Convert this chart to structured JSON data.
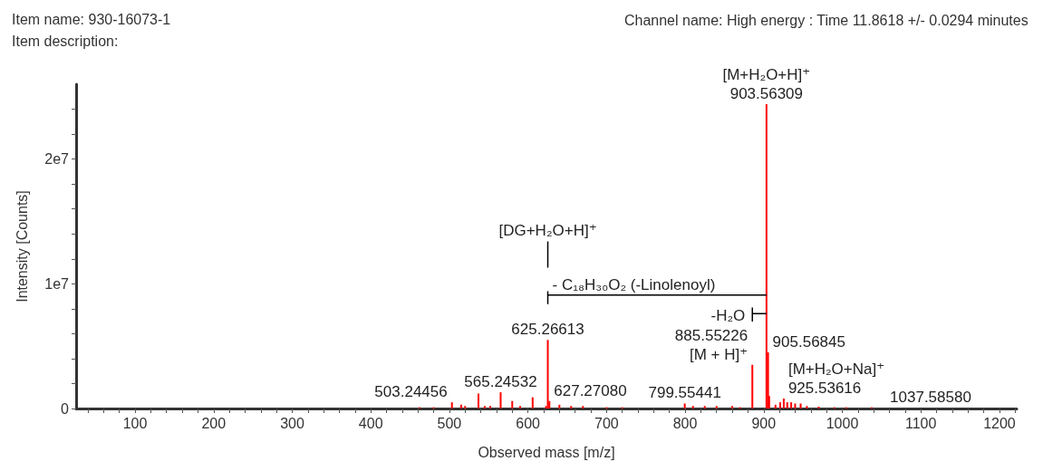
{
  "chart_data": {
    "type": "bar",
    "title": "Item name: 930-16073-1",
    "subtitle": "Item description:",
    "xlabel": "Observed mass [m/z]",
    "ylabel": "Intensity [Counts]",
    "x": [
      462,
      480,
      503.24456,
      515,
      520,
      537,
      545,
      552,
      565.24532,
      580,
      590,
      606,
      623,
      625.26613,
      627.2708,
      640,
      655,
      670,
      700,
      720,
      799.55441,
      810,
      825,
      840,
      860,
      870,
      885.55226,
      903.56309,
      905.56845,
      907,
      915,
      921,
      925.53616,
      930,
      935,
      940,
      947,
      955,
      970,
      990,
      1005,
      1037.5858
    ],
    "values": [
      100000,
      100000,
      500000,
      300000,
      200000,
      1200000,
      200000,
      200000,
      1300000,
      600000,
      200000,
      900000,
      200000,
      5500000,
      600000,
      300000,
      200000,
      200000,
      100000,
      100000,
      400000,
      200000,
      200000,
      200000,
      200000,
      100000,
      3500000,
      24400000,
      4500000,
      1000000,
      300000,
      500000,
      800000,
      500000,
      500000,
      400000,
      400000,
      200000,
      150000,
      100000,
      100000,
      100000
    ],
    "color": "#ff0000",
    "series": [
      {
        "type": "line",
        "color": "#000000",
        "x": [
          625.26613,
          625.26613
        ],
        "values": [
          13400000,
          11300000
        ]
      },
      {
        "type": "line",
        "color": "#000000",
        "x": [
          625.26613,
          625.26613,
          625.26613,
          903.56309
        ],
        "values": [
          9400000,
          8400000,
          9100000,
          9100000
        ]
      },
      {
        "type": "line",
        "color": "#000000",
        "x": [
          885.55226,
          885.55226,
          885.55226,
          903.56309
        ],
        "values": [
          8100000,
          7000000,
          7600000,
          7600000
        ]
      }
    ],
    "xlim": [
      25,
      1222
    ],
    "xticks": [
      {
        "value": 40,
        "label": null
      },
      {
        "value": 60,
        "label": null
      },
      {
        "value": 80,
        "label": null
      },
      100,
      {
        "value": 120,
        "label": null
      },
      {
        "value": 140,
        "label": null
      },
      {
        "value": 160,
        "label": null
      },
      {
        "value": 180,
        "label": null
      },
      200,
      {
        "value": 220,
        "label": null
      },
      {
        "value": 240,
        "label": null
      },
      {
        "value": 260,
        "label": null
      },
      {
        "value": 280,
        "label": null
      },
      300,
      {
        "value": 320,
        "label": null
      },
      {
        "value": 340,
        "label": null
      },
      {
        "value": 360,
        "label": null
      },
      {
        "value": 380,
        "label": null
      },
      400,
      {
        "value": 420,
        "label": null
      },
      {
        "value": 440,
        "label": null
      },
      {
        "value": 460,
        "label": null
      },
      {
        "value": 480,
        "label": null
      },
      500,
      {
        "value": 520,
        "label": null
      },
      {
        "value": 540,
        "label": null
      },
      {
        "value": 560,
        "label": null
      },
      {
        "value": 580,
        "label": null
      },
      600,
      {
        "value": 620,
        "label": null
      },
      {
        "value": 640,
        "label": null
      },
      {
        "value": 660,
        "label": null
      },
      {
        "value": 680,
        "label": null
      },
      700,
      {
        "value": 720,
        "label": null
      },
      {
        "value": 740,
        "label": null
      },
      {
        "value": 760,
        "label": null
      },
      {
        "value": 780,
        "label": null
      },
      800,
      {
        "value": 820,
        "label": null
      },
      {
        "value": 840,
        "label": null
      },
      {
        "value": 860,
        "label": null
      },
      {
        "value": 880,
        "label": null
      },
      900,
      {
        "value": 920,
        "label": null
      },
      {
        "value": 940,
        "label": null
      },
      {
        "value": 960,
        "label": null
      },
      {
        "value": 980,
        "label": null
      },
      1000,
      {
        "value": 1020,
        "label": null
      },
      {
        "value": 1040,
        "label": null
      },
      {
        "value": 1060,
        "label": null
      },
      {
        "value": 1080,
        "label": null
      },
      1100,
      {
        "value": 1120,
        "label": null
      },
      {
        "value": 1140,
        "label": null
      },
      {
        "value": 1160,
        "label": null
      },
      {
        "value": 1180,
        "label": null
      },
      1200,
      {
        "value": 1220,
        "label": null
      }
    ],
    "ylim": [
      0,
      26000000
    ],
    "yticks": [
      0,
      {
        "value": 2000000,
        "label": null
      },
      {
        "value": 4000000,
        "label": null
      },
      {
        "value": 6000000,
        "label": null
      },
      {
        "value": 8000000,
        "label": null
      },
      {
        "value": 10000000,
        "label": "1e7"
      },
      {
        "value": 12000000,
        "label": null
      },
      {
        "value": 14000000,
        "label": null
      },
      {
        "value": 16000000,
        "label": null
      },
      {
        "value": 18000000,
        "label": null
      },
      {
        "value": 20000000,
        "label": "2e7"
      },
      {
        "value": 22000000,
        "label": null
      },
      {
        "value": 24000000,
        "label": null
      }
    ],
    "annotations": [
      "Channel name: High energy : Time 11.8618 +/- 0.0294 minutes",
      {
        "text": "903.56309",
        "x": 903.56309,
        "y": 24400000
      },
      {
        "text": "[M+H₂O+H]⁺",
        "x": 903.56309,
        "y": 24400000
      },
      {
        "text": "[DG+H₂O+H]⁺",
        "x": 625.26613,
        "y": 13400000
      },
      {
        "text": "- C₁₈H₃₀O₂ (-Linolenoyl)",
        "x": 625.26613,
        "y": 9100000
      },
      {
        "text": "-H₂O",
        "x": 885.55226,
        "y": 7600000
      },
      {
        "text": "905.56845",
        "x": 905.56845,
        "y": 4500000
      },
      {
        "text": "[M + H]⁺",
        "x": 885.55226,
        "y": 3500000
      },
      {
        "text": "885.55226",
        "x": 885.55226,
        "y": 3500000
      },
      {
        "text": "925.53616",
        "x": 925.53616,
        "y": 800000
      },
      {
        "text": "[M+H₂O+Na]⁺",
        "x": 925.53616,
        "y": 800000
      },
      {
        "text": "625.26613",
        "x": 625.26613,
        "y": 5500000
      },
      {
        "text": "627.27080",
        "x": 627.2708,
        "y": 600000
      },
      {
        "text": "503.24456",
        "x": 503.24456,
        "y": 500000
      },
      {
        "text": "565.24532",
        "x": 565.24532,
        "y": 1300000
      },
      {
        "text": "799.55441",
        "x": 799.55441,
        "y": 400000
      },
      {
        "text": "1037.58580",
        "x": 1037.5858,
        "y": 100000
      }
    ]
  }
}
